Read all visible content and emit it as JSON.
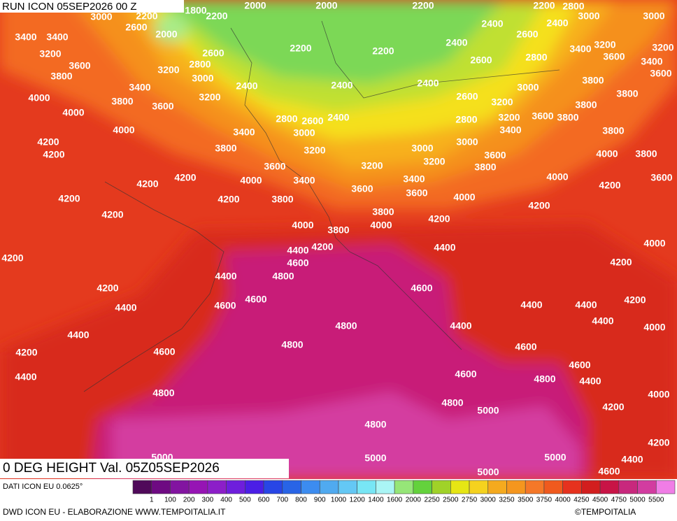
{
  "header": {
    "run": "RUN ICON 05SEP2026 00 Z",
    "title": "0 DEG HEIGHT Val. 05Z05SEP2026"
  },
  "map": {
    "contour_labels": [
      3000,
      2200,
      2600,
      1800,
      2200,
      2000,
      2000,
      2200,
      2200,
      2800,
      3000,
      3000,
      3400,
      3400,
      2000,
      2600,
      2200,
      2200,
      2400,
      2400,
      2400,
      2600,
      3400,
      3200,
      3200,
      3200,
      3600,
      3200,
      2800,
      3000,
      2400,
      2400,
      2400,
      2600,
      2800,
      3600,
      3400,
      3600,
      3800,
      3400,
      3200,
      2600,
      3000,
      3800,
      3800,
      4000,
      3800,
      3600,
      2800,
      2600,
      2400,
      3200,
      3800,
      4000,
      3200,
      3600,
      3800,
      2800,
      4000,
      3400,
      3000,
      3400,
      3800,
      4200,
      3800,
      3200,
      3000,
      3000,
      4000,
      3800,
      4200,
      3200,
      3600,
      3600,
      3200,
      3800,
      4200,
      4000,
      3400,
      3400,
      4000,
      3600,
      4200,
      3600,
      3600,
      4200,
      4200,
      4200,
      3800,
      4000,
      4200,
      4200,
      3800,
      4000,
      3800,
      4000,
      4200,
      4400,
      4200,
      4400,
      4000,
      4200,
      4600,
      4200,
      4400,
      4800,
      4600,
      4200,
      4600,
      4200,
      4400,
      4600,
      4400,
      4400,
      4400,
      4000,
      4800,
      4400,
      4400,
      4800,
      4600,
      4200,
      4600,
      4600,
      4600,
      4800,
      4400,
      4400,
      4800,
      4000,
      4800,
      5000,
      4200,
      4800,
      4200,
      5000,
      5000,
      5000,
      4400,
      5000,
      4600
    ]
  },
  "legend": {
    "source": "DATI ICON EU 0.0625°",
    "labels": [
      1,
      100,
      200,
      300,
      400,
      500,
      600,
      700,
      800,
      900,
      1000,
      1200,
      1400,
      1600,
      2000,
      2250,
      2500,
      2750,
      3000,
      3250,
      3500,
      3750,
      4000,
      4250,
      4500,
      4750,
      5000,
      5500
    ],
    "colors": [
      "#500a5a",
      "#6e0a82",
      "#8214a0",
      "#9614b4",
      "#8c1ec8",
      "#6e1edc",
      "#4b1ee6",
      "#2846e6",
      "#2864e6",
      "#3c8cf0",
      "#50aaf0",
      "#64c8f5",
      "#78e6f5",
      "#aaf5f5",
      "#96e678",
      "#64d23c",
      "#a0d228",
      "#e6e614",
      "#f5d21e",
      "#f5aa1e",
      "#f5961e",
      "#f57828",
      "#f05a1e",
      "#e6321e",
      "#d21e1e",
      "#c81446",
      "#c8287d",
      "#d23ca0",
      "#f07de6"
    ]
  },
  "footer": {
    "credit": "DWD ICON EU - ELABORAZIONE WWW.TEMPOITALIA.IT",
    "copyright": "©TEMPOITALIA"
  }
}
